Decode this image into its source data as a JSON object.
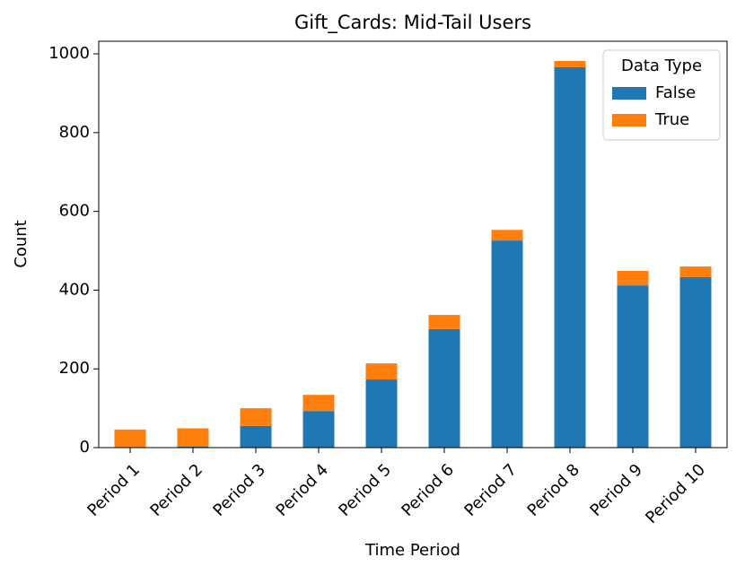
{
  "chart_data": {
    "type": "stacked_bar",
    "title": "Gift_Cards: Mid-Tail Users",
    "x_label": "Time Period",
    "y_label": "Count",
    "categories": [
      "Period 1",
      "Period 2",
      "Period 3",
      "Period 4",
      "Period 5",
      "Period 6",
      "Period 7",
      "Period 8",
      "Period 9",
      "Period 10"
    ],
    "series": [
      {
        "name": "False",
        "color": "#1f77b4",
        "values": [
          0,
          3,
          55,
          93,
          173,
          301,
          526,
          966,
          412,
          433
        ]
      },
      {
        "name": "True",
        "color": "#ff7f0e",
        "values": [
          46,
          46,
          45,
          41,
          41,
          36,
          27,
          16,
          37,
          27
        ]
      }
    ],
    "legend_title": "Data Type",
    "legend": "upper right",
    "ylim": [
      0,
      1032
    ],
    "yticks": [
      0,
      200,
      400,
      600,
      800,
      1000
    ]
  }
}
